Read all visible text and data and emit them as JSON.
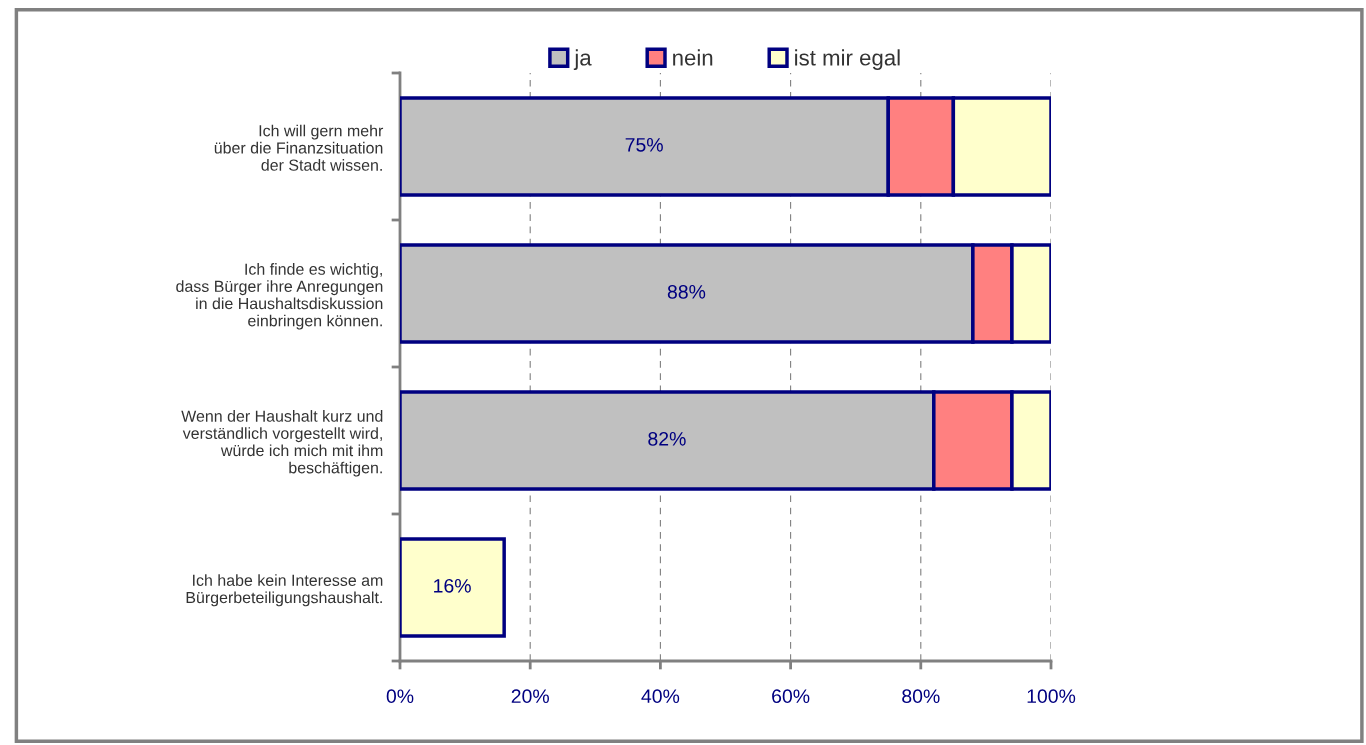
{
  "chart_data": {
    "type": "bar",
    "orientation": "horizontal",
    "stacked": true,
    "categories": [
      "Ich will gern mehr\nüber die Finanzsituation\nder Stadt wissen.",
      "Ich finde es wichtig,\ndass Bürger ihre Anregungen\nin die Haushaltsdiskussion\neinbringen können.",
      "Wenn der Haushalt kurz und\nverständlich vorgestellt wird,\nwürde ich mich mit ihm\nbeschäftigen.",
      "Ich habe kein Interesse am\nBürgerbeteiligungshaushalt."
    ],
    "series": [
      {
        "name": "ja",
        "color": "#c0c0c0",
        "values": [
          75,
          88,
          82,
          null
        ],
        "value_labels": [
          "75%",
          "88%",
          "82%",
          null
        ]
      },
      {
        "name": "nein",
        "color": "#ff8080",
        "values": [
          10,
          6,
          12,
          null
        ]
      },
      {
        "name": "ist mir egal",
        "color": "#ffffcc",
        "values": [
          15,
          6,
          6,
          16
        ],
        "value_labels": [
          null,
          null,
          null,
          "16%"
        ]
      }
    ],
    "xlim": [
      0,
      100
    ],
    "xticks": [
      {
        "value": 0,
        "label": "0%"
      },
      {
        "value": 20,
        "label": "20%"
      },
      {
        "value": 40,
        "label": "40%"
      },
      {
        "value": 60,
        "label": "60%"
      },
      {
        "value": 80,
        "label": "80%"
      },
      {
        "value": 100,
        "label": "100%"
      }
    ],
    "grid": "x",
    "legend": "top"
  }
}
